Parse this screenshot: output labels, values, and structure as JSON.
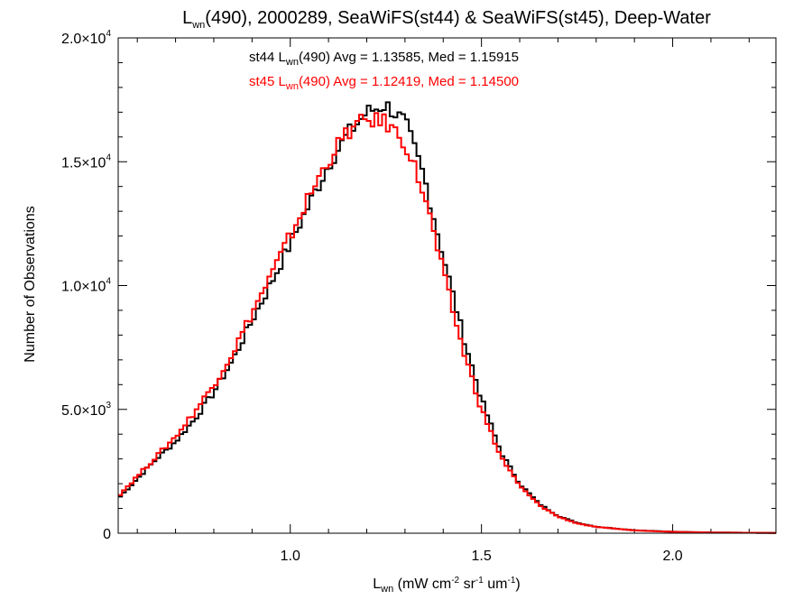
{
  "chart_data": {
    "type": "line",
    "title": {
      "main": "L",
      "sub": "wn",
      "rest": "(490), 2000289, SeaWiFS(st44) & SeaWiFS(st45), Deep-Water"
    },
    "xlabel": {
      "main": "L",
      "sub": "wn",
      "p1": " (mW cm",
      "sup1": "-2",
      "p2": " sr",
      "sup2": "-1",
      "p3": " um",
      "sup3": "-1",
      "p4": ")"
    },
    "ylabel": "Number of Observations",
    "xlim": [
      0.55,
      2.27
    ],
    "ylim": [
      0,
      20000
    ],
    "x_ticks": [
      {
        "value": 1.0,
        "label": "1.0"
      },
      {
        "value": 1.5,
        "label": "1.5"
      },
      {
        "value": 2.0,
        "label": "2.0"
      }
    ],
    "y_ticks": [
      {
        "value": 0,
        "label": "0",
        "exp": ""
      },
      {
        "value": 5000,
        "label": "5.0×10",
        "exp": "3"
      },
      {
        "value": 10000,
        "label": "1.0×10",
        "exp": "4"
      },
      {
        "value": 15000,
        "label": "1.5×10",
        "exp": "4"
      },
      {
        "value": 20000,
        "label": "2.0×10",
        "exp": "4"
      }
    ],
    "annotations": [
      {
        "prefix": "st44 L",
        "sub": "wn",
        "rest": "(490) Avg = 1.13585, Med = 1.15915",
        "color": "#000000"
      },
      {
        "prefix": "st45 L",
        "sub": "wn",
        "rest": "(490) Avg = 1.12419, Med = 1.14500",
        "color": "#ff0000"
      }
    ],
    "series": [
      {
        "color": "#000000",
        "x": [
          0.55,
          0.6,
          0.65,
          0.7,
          0.75,
          0.8,
          0.85,
          0.9,
          0.95,
          1.0,
          1.05,
          1.1,
          1.15,
          1.2,
          1.25,
          1.3,
          1.35,
          1.4,
          1.45,
          1.5,
          1.55,
          1.6,
          1.65,
          1.7,
          1.75,
          1.8,
          1.9,
          2.0,
          2.1,
          2.27
        ],
        "y": [
          1400,
          2200,
          3000,
          3700,
          4600,
          5700,
          7000,
          8600,
          10100,
          11700,
          13300,
          14900,
          16100,
          17000,
          17300,
          16600,
          14400,
          11200,
          8100,
          5400,
          3300,
          2000,
          1200,
          700,
          420,
          260,
          120,
          60,
          30,
          10
        ]
      },
      {
        "color": "#ff0000",
        "x": [
          0.55,
          0.6,
          0.65,
          0.7,
          0.75,
          0.8,
          0.85,
          0.9,
          0.95,
          1.0,
          1.05,
          1.1,
          1.15,
          1.2,
          1.25,
          1.3,
          1.35,
          1.4,
          1.45,
          1.5,
          1.55,
          1.6,
          1.65,
          1.7,
          1.75,
          1.8,
          1.9,
          2.0,
          2.1,
          2.27
        ],
        "y": [
          1500,
          2300,
          3100,
          3900,
          4900,
          6000,
          7300,
          8900,
          10400,
          12000,
          13600,
          15100,
          16200,
          16700,
          16600,
          15800,
          13700,
          10500,
          7500,
          5000,
          3100,
          1900,
          1150,
          670,
          400,
          250,
          115,
          55,
          28,
          10
        ]
      }
    ]
  }
}
